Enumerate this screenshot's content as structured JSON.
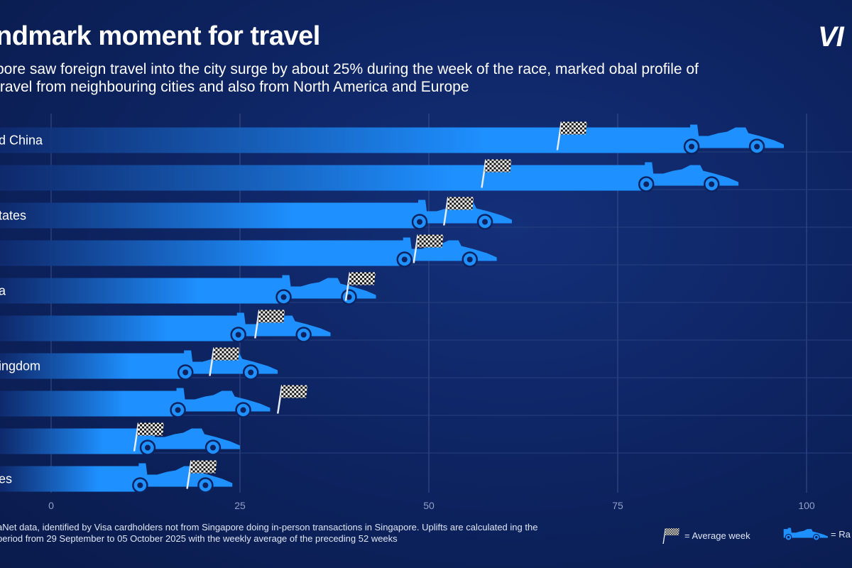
{
  "header": {
    "title": "ndmark moment for travel",
    "subtitle": "pore saw foreign travel into the city surge by about 25% during the week of the race, marked obal profile of travel from neighbouring cities and also from North America and Europe",
    "logo": "VI"
  },
  "footnote": "aNet data, identified by Visa cardholders not from Singapore doing in-person transactions in Singapore. Uplifts are calculated ing the period from 29 September to 05 October 2025 with the weekly average of the preceding 52 weeks",
  "legend": {
    "average_label": "= Average week",
    "race_label": "= Ra"
  },
  "colors": {
    "background": "#0d235f",
    "bar": "#1e90ff",
    "bar_fade": "#0f2a6e",
    "text": "#ffffff",
    "tick": "#8fa0c9"
  },
  "chart_data": {
    "type": "bar",
    "orientation": "horizontal",
    "categories": [
      "d China",
      "",
      "tates",
      "",
      "a",
      "",
      "ingdom",
      "",
      "",
      "es"
    ],
    "series": [
      {
        "name": "Race",
        "values": [
          97,
          91,
          61,
          59,
          43,
          37,
          30,
          29,
          25,
          24
        ]
      },
      {
        "name": "Average week",
        "values": [
          67,
          57,
          52,
          48,
          39,
          27,
          21,
          30,
          11,
          18
        ]
      }
    ],
    "xlim": [
      0,
      100
    ],
    "xticks": [
      0,
      25,
      50,
      75,
      100
    ],
    "grid": true,
    "legend_position": "bottom-right"
  }
}
